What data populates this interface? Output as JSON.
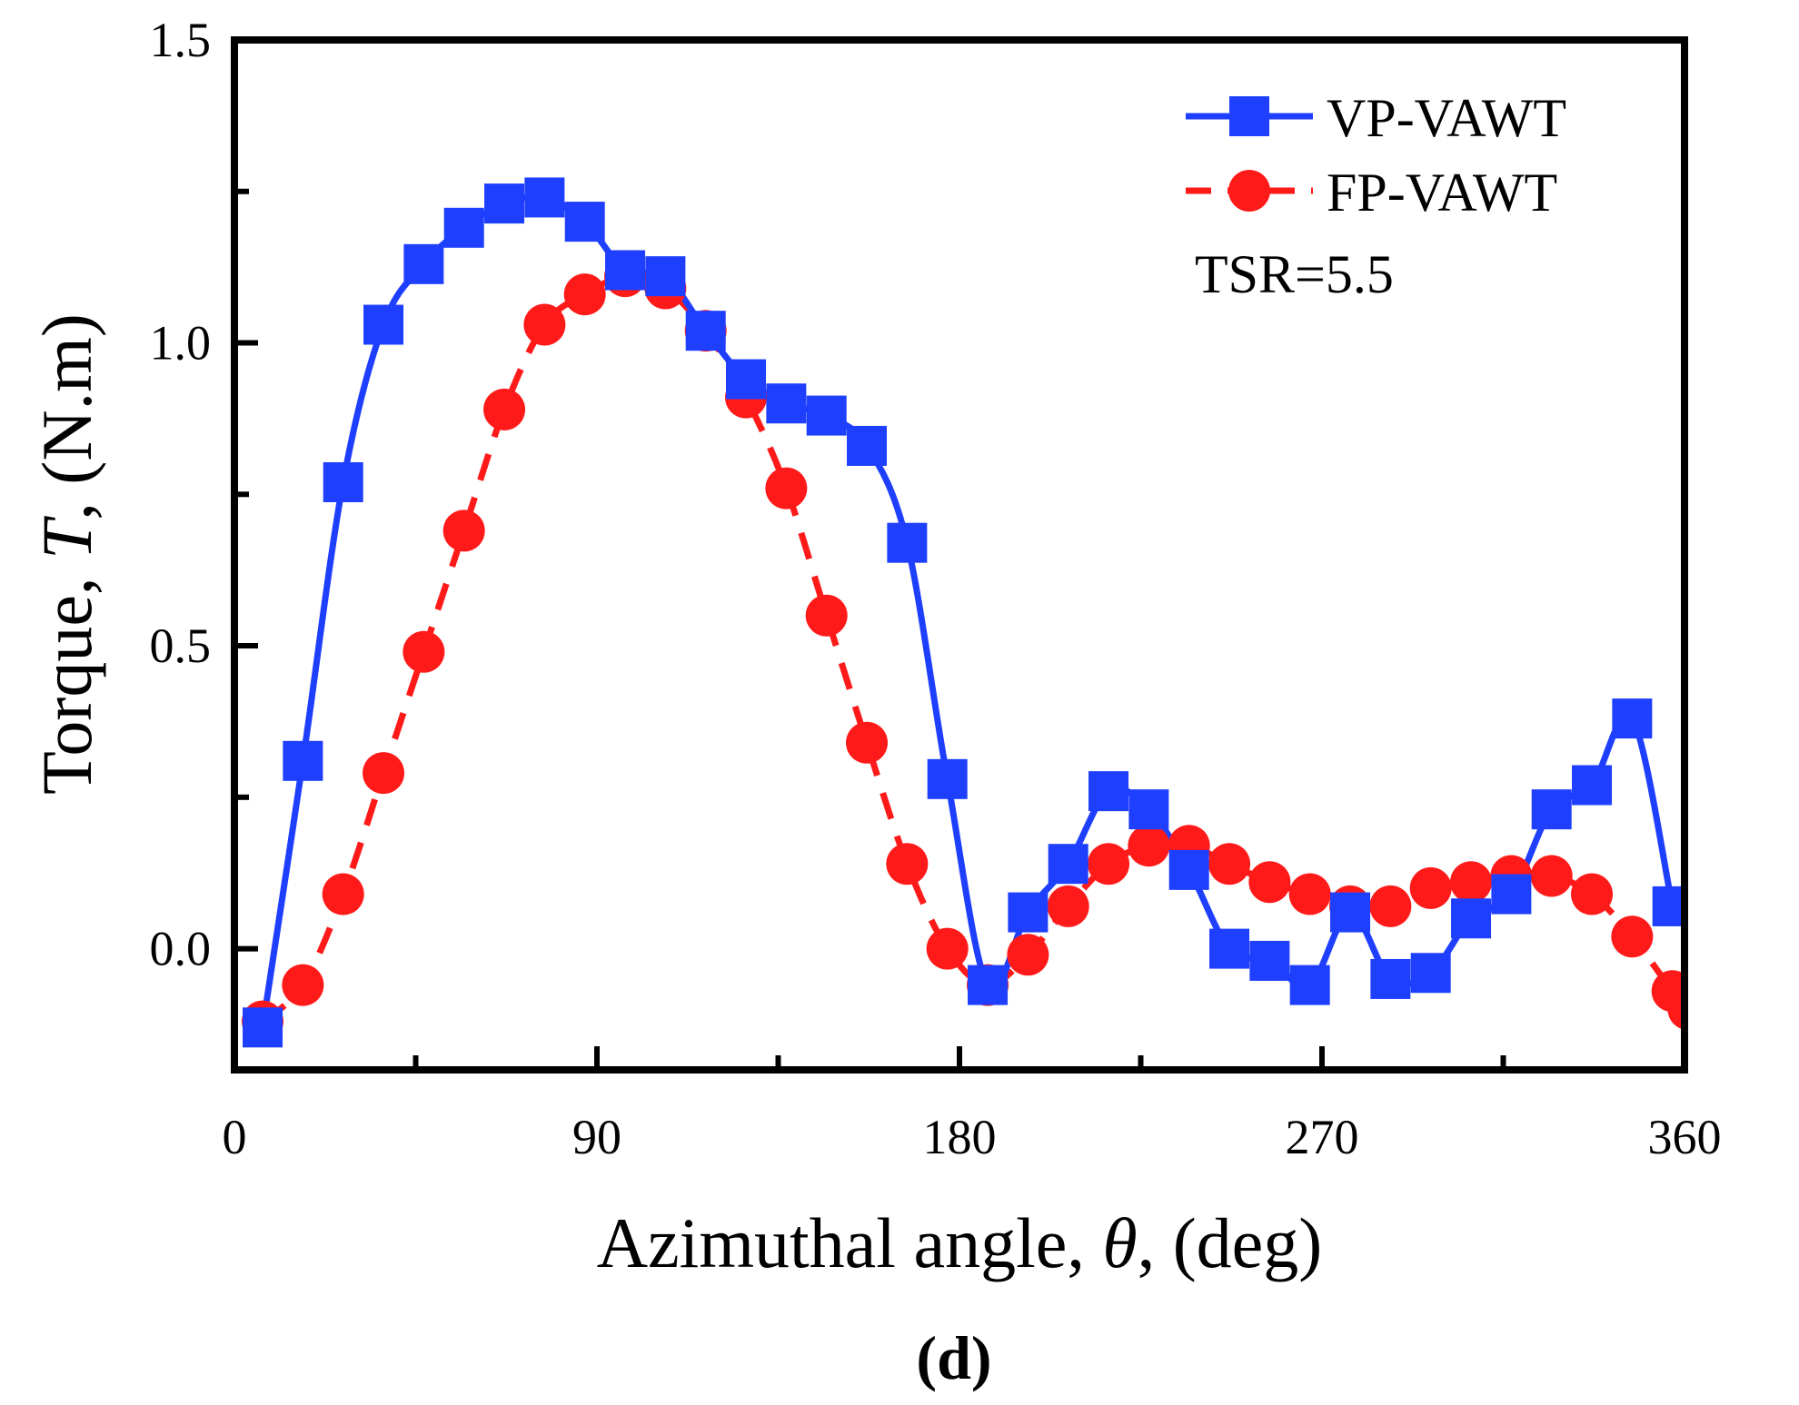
{
  "chart_data": {
    "type": "line",
    "panel_label": {
      "open": "(",
      "letter": "d",
      "close": ")"
    },
    "xlabel": {
      "prefix": "Azimuthal angle, ",
      "symbol": "θ",
      "suffix": ", (deg)"
    },
    "ylabel": {
      "prefix": "Torque, ",
      "symbol": "T",
      "suffix": ", (N.m)"
    },
    "xlim": [
      0,
      360
    ],
    "ylim": [
      -0.2,
      1.5
    ],
    "xticks": [
      0,
      90,
      180,
      270,
      360
    ],
    "xtick_labels": [
      "0",
      "90",
      "180",
      "270",
      "360"
    ],
    "yticks": [
      0.0,
      0.5,
      1.0,
      1.5
    ],
    "ytick_labels": [
      "0.0",
      "0.5",
      "1.0",
      "1.5"
    ],
    "annotation": "TSR=5.5",
    "legend_position": "top-right",
    "colors": {
      "vp": "#1f3fff",
      "fp": "#ff1a1a",
      "axis": "#000000"
    },
    "series": [
      {
        "name": "VP-VAWT",
        "marker": "square",
        "line": "solid",
        "color": "#1f3fff",
        "x": [
          7,
          17,
          27,
          37,
          47,
          57,
          67,
          77,
          87,
          97,
          107,
          117,
          127,
          137,
          147,
          157,
          167,
          177,
          187,
          197,
          207,
          217,
          227,
          237,
          247,
          257,
          267,
          277,
          287,
          297,
          307,
          317,
          327,
          337,
          347,
          357
        ],
        "values": [
          -0.13,
          0.31,
          0.77,
          1.03,
          1.13,
          1.19,
          1.23,
          1.24,
          1.2,
          1.12,
          1.11,
          1.02,
          0.94,
          0.9,
          0.88,
          0.83,
          0.67,
          0.28,
          -0.06,
          0.06,
          0.14,
          0.26,
          0.23,
          0.13,
          0.0,
          -0.02,
          -0.06,
          0.06,
          -0.05,
          -0.04,
          0.05,
          0.09,
          0.23,
          0.27,
          0.38,
          0.07
        ]
      },
      {
        "name": "FP-VAWT",
        "marker": "circle",
        "line": "dashed",
        "color": "#ff1a1a",
        "x": [
          7,
          17,
          27,
          37,
          47,
          57,
          67,
          77,
          87,
          97,
          107,
          117,
          127,
          137,
          147,
          157,
          167,
          177,
          187,
          197,
          207,
          217,
          227,
          237,
          247,
          257,
          267,
          277,
          287,
          297,
          307,
          317,
          327,
          337,
          347,
          357,
          361
        ],
        "values": [
          -0.12,
          -0.06,
          0.09,
          0.29,
          0.49,
          0.69,
          0.89,
          1.03,
          1.08,
          1.11,
          1.09,
          1.02,
          0.91,
          0.76,
          0.55,
          0.34,
          0.14,
          0.0,
          -0.06,
          -0.01,
          0.07,
          0.14,
          0.17,
          0.17,
          0.14,
          0.11,
          0.09,
          0.07,
          0.07,
          0.1,
          0.11,
          0.12,
          0.12,
          0.09,
          0.02,
          -0.07,
          -0.1
        ]
      }
    ]
  }
}
